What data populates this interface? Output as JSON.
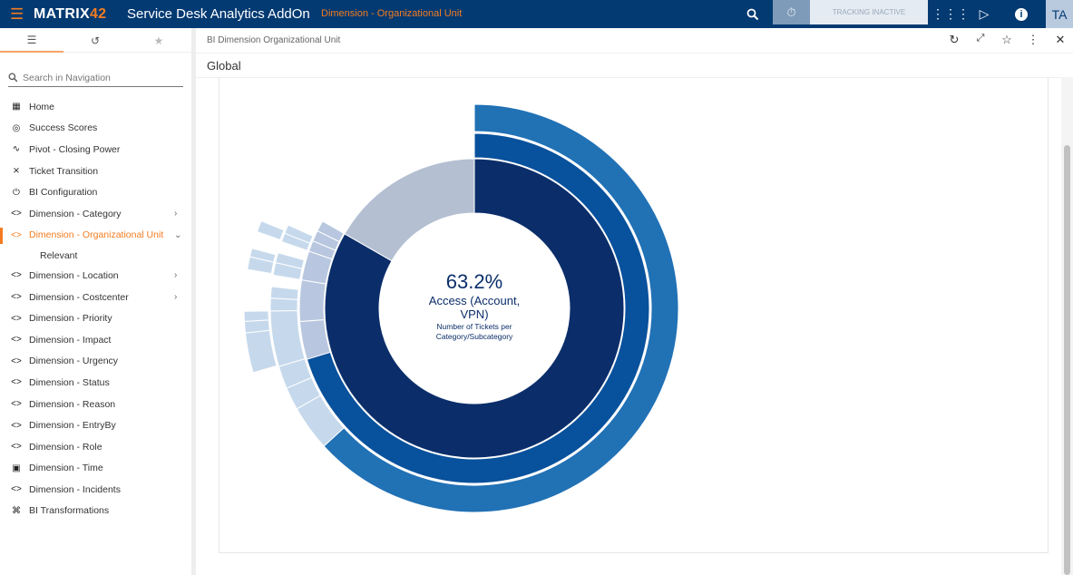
{
  "header": {
    "logo": "MATRIX",
    "logo_accent": "42",
    "app_title": "Service Desk Analytics AddOn",
    "breadcrumb": "Dimension - Organizational Unit",
    "tracking_status": "TRACKING INACTIVE",
    "user_initials": "TA"
  },
  "sidebar": {
    "search_placeholder": "Search in Navigation",
    "items": [
      {
        "label": "Home",
        "icon": "dashboard-icon"
      },
      {
        "label": "Success Scores",
        "icon": "target-icon"
      },
      {
        "label": "Pivot - Closing Power",
        "icon": "trend-icon"
      },
      {
        "label": "Ticket Transition",
        "icon": "shuffle-icon"
      },
      {
        "label": "BI Configuration",
        "icon": "power-icon"
      },
      {
        "label": "Dimension - Category",
        "icon": "code-icon",
        "expandable": true
      },
      {
        "label": "Dimension - Organizational Unit",
        "icon": "code-icon",
        "expanded": true,
        "active": true
      },
      {
        "label": "Relevant",
        "sub": true
      },
      {
        "label": "Dimension - Location",
        "icon": "code-icon",
        "expandable": true
      },
      {
        "label": "Dimension - Costcenter",
        "icon": "code-icon",
        "expandable": true
      },
      {
        "label": "Dimension - Priority",
        "icon": "code-icon"
      },
      {
        "label": "Dimension - Impact",
        "icon": "code-icon"
      },
      {
        "label": "Dimension - Urgency",
        "icon": "code-icon"
      },
      {
        "label": "Dimension - Status",
        "icon": "code-icon"
      },
      {
        "label": "Dimension - Reason",
        "icon": "code-icon"
      },
      {
        "label": "Dimension - EntryBy",
        "icon": "code-icon"
      },
      {
        "label": "Dimension - Role",
        "icon": "code-icon"
      },
      {
        "label": "Dimension - Time",
        "icon": "calendar-icon"
      },
      {
        "label": "Dimension - Incidents",
        "icon": "code-icon"
      },
      {
        "label": "BI Transformations",
        "icon": "crop-icon"
      }
    ]
  },
  "main": {
    "breadcrumb": "BI Dimension Organizational Unit",
    "title": "Global"
  },
  "chart_data": {
    "type": "sunburst",
    "center": {
      "value": "63.2%",
      "label_line1": "Access (Account,",
      "label_line2": "VPN)",
      "sub_line1": "Number of Tickets per",
      "sub_line2": "Category/Subcategory"
    },
    "rings": [
      {
        "level": 1,
        "segments": [
          {
            "start": 0,
            "end": 83.3,
            "color": "#0b2e6a"
          },
          {
            "start": 83.3,
            "end": 100,
            "color": "#b4bfd2"
          }
        ]
      },
      {
        "level": 2,
        "segments": [
          {
            "start": 0,
            "end": 70.3,
            "color": "#08519c"
          },
          {
            "start": 70.3,
            "end": 73.8,
            "color": "#b8c7df"
          },
          {
            "start": 73.8,
            "end": 77.6,
            "color": "#b8c7df"
          },
          {
            "start": 77.6,
            "end": 80.3,
            "color": "#b8c7df"
          },
          {
            "start": 80.3,
            "end": 81.3,
            "color": "#b8c7df"
          },
          {
            "start": 81.3,
            "end": 82.3,
            "color": "#b8c7df"
          },
          {
            "start": 82.3,
            "end": 83.3,
            "color": "#b8c7df"
          }
        ]
      },
      {
        "level": 3,
        "segments": [
          {
            "start": 0,
            "end": 63.2,
            "color": "#2171b5"
          },
          {
            "start": 63.2,
            "end": 66.8,
            "color": "#c6d9ec"
          },
          {
            "start": 66.8,
            "end": 68.6,
            "color": "#c6d9ec"
          },
          {
            "start": 68.6,
            "end": 70.4,
            "color": "#c6d9ec"
          },
          {
            "start": 70.4,
            "end": 74.8,
            "color": "#c6d9ec"
          },
          {
            "start": 74.8,
            "end": 75.8,
            "color": "#c6d9ec"
          },
          {
            "start": 75.8,
            "end": 76.7,
            "color": "#c6d9ec"
          },
          {
            "start": 77.6,
            "end": 78.6,
            "color": "#c6d9ec"
          },
          {
            "start": 78.6,
            "end": 79.4,
            "color": "#c6d9ec"
          },
          {
            "start": 80.3,
            "end": 81.0,
            "color": "#c6d9ec"
          },
          {
            "start": 81.0,
            "end": 81.7,
            "color": "#c6d9ec"
          }
        ]
      },
      {
        "level": 4,
        "segments": [
          {
            "start": 70.5,
            "end": 73.3,
            "color": "#c6d9ec"
          },
          {
            "start": 73.3,
            "end": 74.1,
            "color": "#c6d9ec"
          },
          {
            "start": 74.1,
            "end": 74.8,
            "color": "#c6d9ec"
          },
          {
            "start": 77.7,
            "end": 78.6,
            "color": "#c6d9ec"
          },
          {
            "start": 78.6,
            "end": 79.2,
            "color": "#c6d9ec"
          },
          {
            "start": 80.4,
            "end": 81.2,
            "color": "#c6d9ec"
          }
        ]
      }
    ]
  }
}
